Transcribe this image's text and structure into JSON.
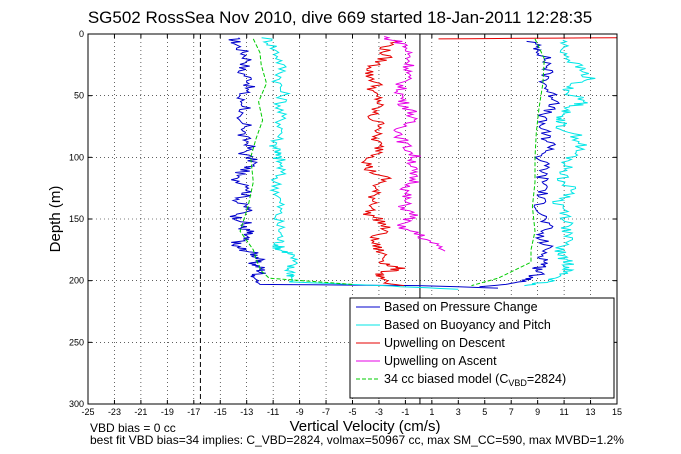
{
  "chart_data": {
    "type": "line",
    "title": "SG502 RossSea Nov 2010, dive 669 started 18-Jan-2011 12:28:35",
    "xlabel": "Vertical Velocity (cm/s)",
    "ylabel": "Depth (m)",
    "xlim": [
      -25,
      15
    ],
    "ylim": [
      0,
      300
    ],
    "y_reversed": true,
    "grid": true,
    "legend_position": "bottom-right",
    "xticks": [
      -25,
      -23,
      -21,
      -19,
      -17,
      -15,
      -13,
      -11,
      -9,
      -7,
      -5,
      -3,
      -1,
      1,
      3,
      5,
      7,
      9,
      11,
      13,
      15
    ],
    "yticks": [
      0,
      50,
      100,
      150,
      200,
      250,
      300
    ],
    "vlines": [
      {
        "x": -16.5,
        "style": "dashed",
        "color": "#000000"
      },
      {
        "x": 0.1,
        "style": "solid",
        "color": "#000000"
      }
    ],
    "series": [
      {
        "name": "Based on Pressure Change",
        "color": "#0000cc",
        "style": "solid",
        "segments": [
          {
            "x": [
              -14,
              -13.8,
              -13.2,
              -12.8,
              -13.5,
              -12.6,
              -13,
              -13.6,
              -12.9,
              -14.1,
              -12.9,
              -13.4,
              -12.7,
              -13.2,
              -12.4,
              -13.1,
              -14,
              -12.6,
              -13,
              -13.7,
              -12.8,
              -13.8,
              -13.1,
              -13.4,
              -12.8,
              -13.1,
              -13.3,
              -14.1,
              -13.4,
              -12.4,
              -12.1,
              -12.5,
              -11.9,
              -11.9,
              -12.5,
              -12.3,
              -12.1,
              -12.3,
              -12.1,
              -12,
              0,
              6
            ],
            "y": [
              3,
              8,
              15,
              22,
              30,
              38,
              45,
              52,
              60,
              68,
              75,
              82,
              90,
              97,
              104,
              110,
              117,
              124,
              130,
              136,
              142,
              148,
              153,
              157,
              160,
              163,
              167,
              171,
              174,
              178,
              182,
              186,
              190,
              194,
              197,
              199,
              200,
              201,
              202,
              203,
              204,
              206
            ]
          },
          {
            "x": [
              8.5,
              9.1,
              9.5,
              9.8,
              9.7,
              9.6,
              9.9,
              10.7,
              9.7,
              9.2,
              9.4,
              9.7,
              10.2,
              9.1,
              9.6,
              9.3,
              9.7,
              9.2,
              9.2,
              9.4,
              9.7,
              9.1,
              9.7,
              9.5,
              9.6,
              9.1,
              9.1,
              8.6,
              7.6,
              6.6,
              4.6
            ],
            "y": [
              6,
              12,
              18,
              25,
              32,
              40,
              48,
              55,
              62,
              70,
              78,
              85,
              92,
              100,
              108,
              116,
              124,
              132,
              140,
              148,
              156,
              164,
              172,
              180,
              186,
              190,
              194,
              198,
              201,
              203,
              205
            ]
          }
        ]
      },
      {
        "name": "Based on Buoyancy and Pitch",
        "color": "#00e6e6",
        "style": "solid",
        "segments": [
          {
            "x": [
              -11.5,
              -11,
              -10.5,
              -10.3,
              -10.6,
              -10.2,
              -10.5,
              -10.4,
              -10.3,
              -10.9,
              -10.5,
              -10.8,
              -10.5,
              -10.4,
              -10.8,
              -10.6,
              -10.5,
              -10.7,
              -10.4,
              -10.5,
              -10.6,
              -10.5,
              -9.6,
              -9.5,
              -9.8,
              -9.5,
              -9.6,
              -9.5,
              -9.8,
              -5,
              3
            ],
            "y": [
              3,
              10,
              20,
              30,
              40,
              50,
              60,
              70,
              80,
              90,
              95,
              98,
              102,
              110,
              120,
              130,
              140,
              150,
              160,
              168,
              172,
              175,
              178,
              185,
              190,
              195,
              198,
              200,
              201,
              203,
              207
            ]
          },
          {
            "x": [
              11,
              10.9,
              11.4,
              12.2,
              12.9,
              11.3,
              11.4,
              12.6,
              11.5,
              10.8,
              10.9,
              10.6,
              11.9,
              12.3,
              11.8,
              11.2,
              11.1,
              10.9,
              11.8,
              10.5,
              11.1,
              11.3,
              11.2,
              11.2,
              10.6,
              11,
              11.3,
              11.5,
              10.9,
              10.5,
              9.5,
              8
            ],
            "y": [
              5,
              12,
              20,
              28,
              36,
              42,
              48,
              55,
              60,
              65,
              70,
              75,
              82,
              90,
              97,
              104,
              112,
              120,
              128,
              136,
              144,
              152,
              160,
              168,
              176,
              182,
              186,
              190,
              194,
              198,
              201,
              204
            ]
          }
        ]
      },
      {
        "name": "Upwelling on Descent",
        "color": "#e60000",
        "style": "solid",
        "segments": [
          {
            "x": [
              -1.7,
              -2.6,
              -2.5,
              -3.4,
              -3.8,
              -3.1,
              -3.6,
              -2.9,
              -3.3,
              -3.6,
              -2.6,
              -3.4,
              -3.1,
              -2.8,
              -3.8,
              -3.8,
              -2.5,
              -3.3,
              -3.4,
              -3.2,
              -3.9,
              -2.8,
              -2.5,
              -3.5,
              -3.2,
              -2.6,
              -2.5,
              -1.5,
              -2.8,
              -2.9,
              -2.3,
              -2.6,
              -1.1
            ],
            "y": [
              5,
              12,
              19,
              26,
              33,
              40,
              47,
              54,
              61,
              68,
              75,
              82,
              89,
              96,
              103,
              110,
              117,
              124,
              131,
              138,
              145,
              152,
              159,
              166,
              173,
              180,
              186,
              190,
              194,
              198,
              200,
              202,
              204
            ]
          },
          {
            "x": [
              1.5,
              15
            ],
            "y": [
              4,
              3
            ]
          }
        ]
      },
      {
        "name": "Upwelling on Ascent",
        "color": "#e600e6",
        "style": "solid",
        "segments": [
          {
            "x": [
              -2.7,
              -1.1,
              -0.8,
              -0.7,
              -0.7,
              -1,
              -1.4,
              -1.3,
              -1.1,
              -0.4,
              -0.7,
              -1.4,
              -1.3,
              -0.9,
              -0.3,
              -0.4,
              -0.6,
              -0.3,
              -1,
              -1,
              -1.1,
              -0.3,
              -1.7,
              -0.1,
              0.9,
              2
            ],
            "y": [
              2,
              8,
              15,
              22,
              29,
              36,
              43,
              50,
              57,
              64,
              71,
              78,
              85,
              92,
              99,
              106,
              113,
              120,
              127,
              134,
              141,
              148,
              155,
              162,
              169,
              176
            ]
          }
        ]
      },
      {
        "name": "34 cc biased model (C_VBD=2824)",
        "color": "#00cc00",
        "style": "dashed",
        "segments": [
          {
            "x": [
              -12.5,
              -12,
              -11.9,
              -11.5,
              -12.1,
              -11.8,
              -12.3,
              -12.7,
              -12.5,
              -12.9,
              -13.5,
              -12.5,
              -12.2,
              -11.9,
              -11.3,
              -5
            ],
            "y": [
              4,
              15,
              25,
              40,
              55,
              70,
              85,
              100,
              120,
              140,
              160,
              175,
              185,
              192,
              198,
              203
            ]
          },
          {
            "x": [
              8.8,
              9.5,
              9.4,
              9.1,
              8.9,
              8.8,
              8.8,
              8.6,
              8.8,
              8.5,
              8.5,
              6,
              4
            ],
            "y": [
              4,
              20,
              40,
              60,
              80,
              100,
              120,
              140,
              160,
              175,
              185,
              198,
              204
            ]
          }
        ]
      }
    ]
  },
  "legend": [
    {
      "label": "Based on Pressure Change"
    },
    {
      "label": "Based on Buoyancy and Pitch"
    },
    {
      "label": "Upwelling on Descent"
    },
    {
      "label": "Upwelling on Ascent"
    },
    {
      "label_main": "34 cc biased model (C",
      "label_sub": "VBD",
      "label_end": "=2824)"
    }
  ],
  "footer": {
    "line1": "VBD bias = 0 cc",
    "line2": "best fit VBD bias=34 implies: C_VBD=2824, volmax=50967 cc, max SM_CC=590, max MVBD=1.2%"
  }
}
